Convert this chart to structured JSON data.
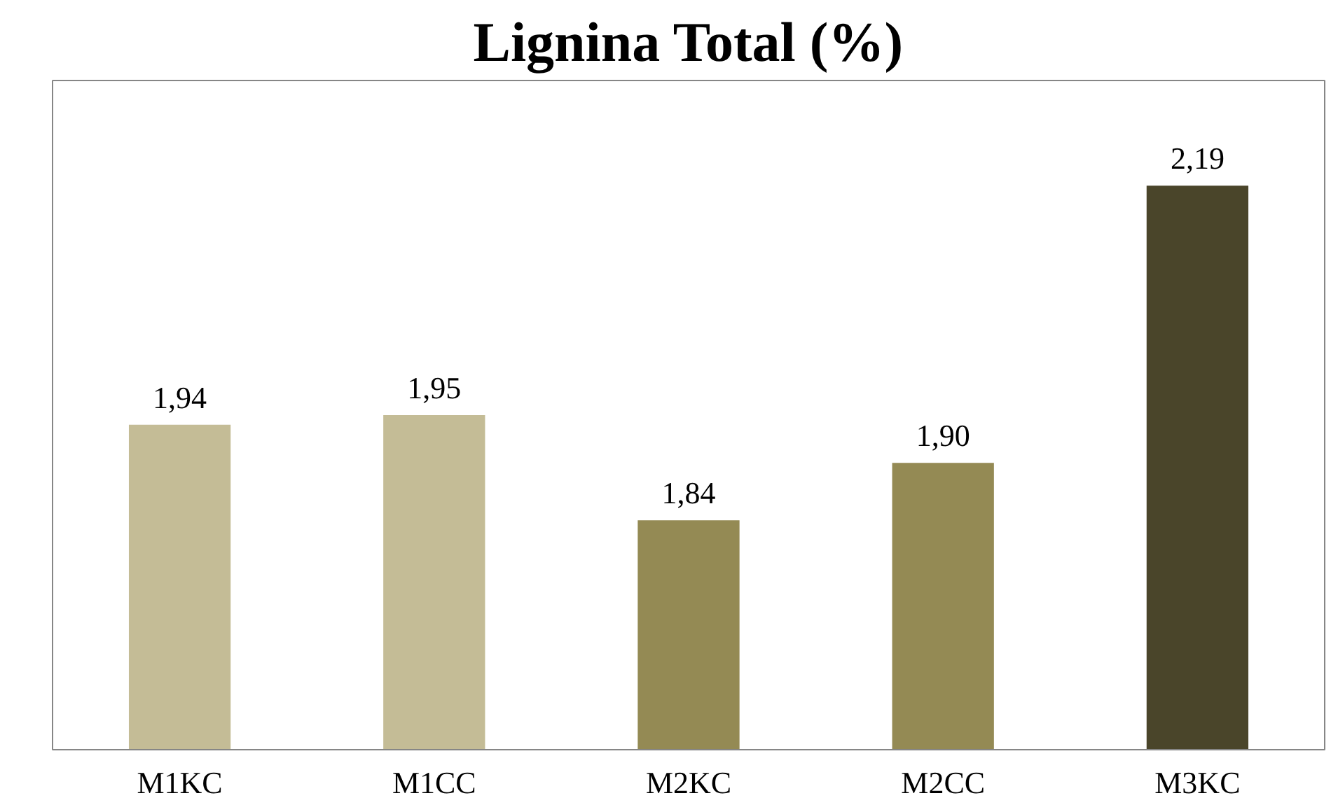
{
  "chart_data": {
    "type": "bar",
    "title": "Lignina Total (%)",
    "categories": [
      "M1KC",
      "M1CC",
      "M2KC",
      "M2CC",
      "M3KC"
    ],
    "values": [
      1.94,
      1.95,
      1.84,
      1.9,
      2.19
    ],
    "value_labels": [
      "1,94",
      "1,95",
      "1,84",
      "1,90",
      "2,19"
    ],
    "colors": [
      "#c4bc96",
      "#c4bc96",
      "#948a54",
      "#948a54",
      "#4a452a"
    ],
    "ylim": [
      1.6,
      2.3
    ],
    "grid": false
  }
}
